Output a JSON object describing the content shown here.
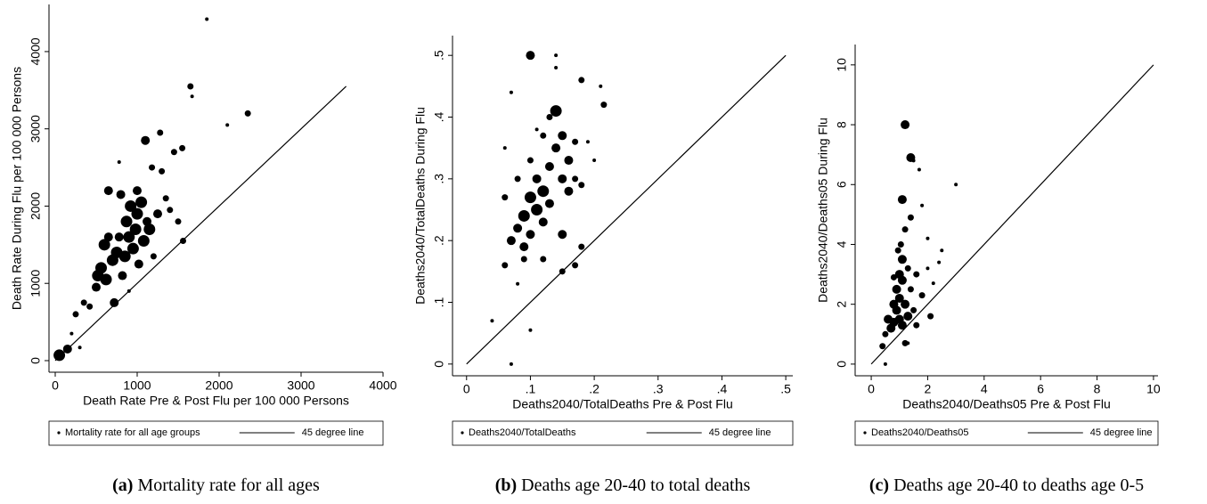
{
  "chart_data": [
    {
      "type": "scatter",
      "caption_label": "(a)",
      "caption": "Mortality rate for all ages",
      "xlabel": "Death Rate Pre & Post Flu per 100 000 Persons",
      "ylabel": "Death Rate During Flu per 100 000 Persons",
      "xlim": [
        -76,
        4000
      ],
      "ylim": [
        -150,
        4610
      ],
      "xticks": [
        0,
        1000,
        2000,
        3000,
        4000
      ],
      "yticks": [
        0,
        1000,
        2000,
        3000,
        4000
      ],
      "series": [
        {
          "name": "Mortality rate for all age groups",
          "color": "#000000",
          "x": [
            50,
            150,
            200,
            250,
            300,
            350,
            420,
            500,
            520,
            560,
            600,
            620,
            650,
            700,
            720,
            750,
            780,
            800,
            820,
            850,
            870,
            900,
            920,
            950,
            980,
            1000,
            1020,
            1050,
            1080,
            1100,
            1120,
            1150,
            1180,
            1200,
            1250,
            1280,
            1300,
            1350,
            1400,
            1450,
            1500,
            1550,
            1560,
            1650,
            1670,
            1850,
            2100,
            2350,
            780,
            900,
            650,
            1000
          ],
          "y": [
            70,
            150,
            350,
            600,
            170,
            750,
            700,
            950,
            1100,
            1200,
            1500,
            1050,
            2200,
            1300,
            750,
            1400,
            1600,
            2150,
            1100,
            1350,
            1800,
            1600,
            2000,
            1450,
            1700,
            1900,
            1250,
            2050,
            1550,
            2850,
            1800,
            1700,
            2500,
            1350,
            1900,
            2950,
            2450,
            2100,
            1950,
            2700,
            1800,
            2750,
            1550,
            3550,
            3420,
            4420,
            3050,
            3200,
            2570,
            900,
            1600,
            2200
          ],
          "sizes": [
            4,
            3,
            1,
            2,
            1,
            2,
            2,
            3,
            4,
            4,
            4,
            4,
            3,
            4,
            3,
            4,
            3,
            3,
            3,
            4,
            4,
            4,
            4,
            4,
            4,
            4,
            3,
            4,
            4,
            3,
            3,
            4,
            2,
            2,
            3,
            2,
            2,
            2,
            2,
            2,
            2,
            2,
            2,
            2,
            1,
            1,
            1,
            2,
            1,
            1,
            3,
            3
          ]
        },
        {
          "name": "45 degree line",
          "type": "line",
          "color": "#000000",
          "x": [
            0,
            3550
          ],
          "y": [
            0,
            3550
          ]
        }
      ]
    },
    {
      "type": "scatter",
      "caption_label": "(b)",
      "caption": "Deaths age 20-40 to total deaths",
      "xlabel": "Deaths2040/TotalDeaths Pre & Post Flu",
      "ylabel": "Deaths2040/TotalDeaths During Flu",
      "xlim": [
        -0.022,
        0.511
      ],
      "ylim": [
        -0.019,
        0.532
      ],
      "xticks": [
        0,
        {
          "value": 0.1,
          "label": ".1"
        },
        {
          "value": 0.2,
          "label": ".2"
        },
        {
          "value": 0.3,
          "label": ".3"
        },
        {
          "value": 0.4,
          "label": ".4"
        },
        {
          "value": 0.5,
          "label": ".5"
        }
      ],
      "yticks": [
        0,
        {
          "value": 0.1,
          "label": ".1"
        },
        {
          "value": 0.2,
          "label": ".2"
        },
        {
          "value": 0.3,
          "label": ".3"
        },
        {
          "value": 0.4,
          "label": ".4"
        },
        {
          "value": 0.5,
          "label": ".5"
        }
      ],
      "series": [
        {
          "name": "Deaths2040/TotalDeaths",
          "color": "#000000",
          "x": [
            0.04,
            0.07,
            0.06,
            0.07,
            0.1,
            0.14,
            0.14,
            0.18,
            0.21,
            0.215,
            0.1,
            0.08,
            0.07,
            0.08,
            0.09,
            0.09,
            0.1,
            0.1,
            0.11,
            0.11,
            0.12,
            0.12,
            0.13,
            0.13,
            0.14,
            0.14,
            0.15,
            0.15,
            0.16,
            0.16,
            0.17,
            0.17,
            0.18,
            0.18,
            0.19,
            0.2,
            0.09,
            0.12,
            0.15,
            0.06,
            0.08,
            0.1,
            0.12,
            0.13,
            0.15,
            0.17,
            0.06,
            0.11
          ],
          "y": [
            0.07,
            0.0,
            0.35,
            0.44,
            0.5,
            0.5,
            0.48,
            0.46,
            0.45,
            0.42,
            0.055,
            0.13,
            0.2,
            0.22,
            0.24,
            0.19,
            0.27,
            0.21,
            0.25,
            0.3,
            0.28,
            0.23,
            0.32,
            0.26,
            0.35,
            0.41,
            0.3,
            0.37,
            0.33,
            0.28,
            0.36,
            0.3,
            0.29,
            0.19,
            0.36,
            0.33,
            0.17,
            0.17,
            0.21,
            0.27,
            0.3,
            0.33,
            0.37,
            0.4,
            0.15,
            0.16,
            0.16,
            0.38
          ],
          "sizes": [
            1,
            1,
            1,
            1,
            3,
            1,
            1,
            2,
            1,
            2,
            1,
            1,
            3,
            3,
            4,
            3,
            4,
            3,
            4,
            3,
            4,
            3,
            3,
            3,
            3,
            4,
            3,
            3,
            3,
            3,
            2,
            2,
            2,
            2,
            1,
            1,
            2,
            2,
            3,
            2,
            2,
            2,
            2,
            2,
            2,
            2,
            2,
            1
          ]
        },
        {
          "name": "45 degree line",
          "type": "line",
          "color": "#000000",
          "x": [
            0,
            0.5
          ],
          "y": [
            0,
            0.5
          ]
        }
      ]
    },
    {
      "type": "scatter",
      "caption_label": "(c)",
      "caption": "Deaths age 20-40 to deaths age 0-5",
      "xlabel": "Deaths2040/Deaths05 Pre & Post Flu",
      "ylabel": "Deaths2040/Deaths05 During Flu",
      "xlim": [
        -0.57,
        10.16
      ],
      "ylim": [
        -0.39,
        10.68
      ],
      "xticks": [
        0,
        2,
        4,
        6,
        8,
        10
      ],
      "yticks": [
        0,
        2,
        4,
        6,
        8,
        10
      ],
      "series": [
        {
          "name": "Deaths2040/Deaths05",
          "color": "#000000",
          "x": [
            0.4,
            0.5,
            0.5,
            0.6,
            0.7,
            0.8,
            0.8,
            0.9,
            0.9,
            1.0,
            1.0,
            1.0,
            1.1,
            1.1,
            1.1,
            1.2,
            1.2,
            1.2,
            1.3,
            1.3,
            1.4,
            1.4,
            1.4,
            1.5,
            1.5,
            1.6,
            1.6,
            1.7,
            1.8,
            1.8,
            2.0,
            2.0,
            2.1,
            2.2,
            2.4,
            2.5,
            3.0,
            1.1,
            1.05,
            1.2,
            0.95,
            1.3,
            0.8
          ],
          "y": [
            0.6,
            0.0,
            1.0,
            1.5,
            1.2,
            2.0,
            1.4,
            2.5,
            1.8,
            3.0,
            1.5,
            2.2,
            3.5,
            1.3,
            2.8,
            2.0,
            4.5,
            8.0,
            3.2,
            1.6,
            6.9,
            2.5,
            4.9,
            6.8,
            1.8,
            3.0,
            1.3,
            6.5,
            5.3,
            2.3,
            3.2,
            4.2,
            1.6,
            2.7,
            3.4,
            3.8,
            6.0,
            5.5,
            4.0,
            0.7,
            3.8,
            0.7,
            2.9
          ],
          "sizes": [
            2,
            1,
            2,
            3,
            3,
            3,
            3,
            3,
            3,
            3,
            3,
            3,
            3,
            3,
            3,
            3,
            2,
            3,
            2,
            3,
            3,
            2,
            2,
            1,
            2,
            2,
            2,
            1,
            1,
            2,
            1,
            1,
            2,
            1,
            1,
            1,
            1,
            3,
            2,
            2,
            2,
            1,
            2
          ]
        },
        {
          "name": "45 degree line",
          "type": "line",
          "color": "#000000",
          "x": [
            0,
            10
          ],
          "y": [
            0,
            10
          ]
        }
      ]
    }
  ]
}
